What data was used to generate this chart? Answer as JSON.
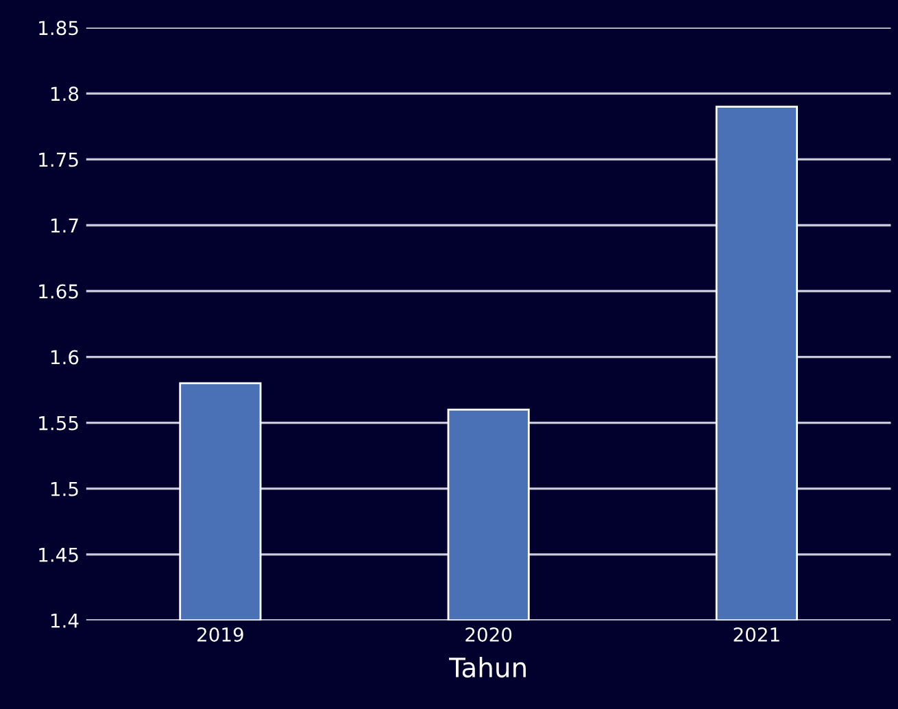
{
  "chart_data": {
    "type": "bar",
    "xlabel": "Tahun",
    "categories": [
      "2019",
      "2020",
      "2021"
    ],
    "values": [
      1.58,
      1.56,
      1.79
    ],
    "color": "#4a70b5",
    "ylim": [
      1.4,
      1.85
    ],
    "yticks": [
      1.4,
      1.45,
      1.5,
      1.55,
      1.6,
      1.65,
      1.7,
      1.75,
      1.8,
      1.85
    ],
    "grid": "y",
    "legend": false
  }
}
